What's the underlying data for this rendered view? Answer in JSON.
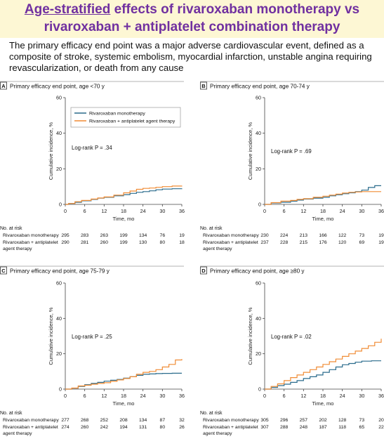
{
  "header": {
    "title_underlined": "Age-stratified",
    "title_rest": " effects of rivaroxaban monotherapy vs",
    "title_line2": "rivaroxaban + antiplatelet combination therapy",
    "description_lines": [
      "The primary efficacy end point was a major adverse cardiovascular event, defined as a",
      "composite of stroke, systemic embolism, myocardial infarction, unstable angina requiring",
      "revascularization, or death from any cause"
    ]
  },
  "colors": {
    "monotherapy": "#2a6b8c",
    "combination": "#f08c35",
    "title": "#7030a0",
    "title_band": "#fdf7d4"
  },
  "chart_data": [
    {
      "type": "line",
      "panel_letter": "A",
      "title": "Primary efficacy end point, age <70 y",
      "xlabel": "Time, mo",
      "ylabel": "Cumulative incidence, %",
      "xlim": [
        0,
        36
      ],
      "ylim": [
        0,
        60
      ],
      "xticks": [
        0,
        6,
        12,
        18,
        24,
        30,
        36
      ],
      "yticks": [
        0,
        20,
        40,
        60
      ],
      "legend_position": "top-left",
      "logrank": "Log-rank P = .34",
      "series": [
        {
          "name": "Rivaroxaban monotherapy",
          "color": "#2a6b8c",
          "points": [
            [
              0,
              0
            ],
            [
              1,
              0.5
            ],
            [
              3,
              1.2
            ],
            [
              5,
              2.0
            ],
            [
              8,
              2.8
            ],
            [
              10,
              3.5
            ],
            [
              12,
              4.0
            ],
            [
              15,
              4.8
            ],
            [
              18,
              5.5
            ],
            [
              20,
              6.2
            ],
            [
              22,
              6.8
            ],
            [
              24,
              7.2
            ],
            [
              26,
              7.6
            ],
            [
              28,
              8.2
            ],
            [
              30,
              8.6
            ],
            [
              33,
              8.8
            ],
            [
              36,
              9.0
            ]
          ]
        },
        {
          "name": "Rivaroxaban + antiplatelet agent therapy",
          "color": "#f08c35",
          "points": [
            [
              0,
              0
            ],
            [
              1,
              0.5
            ],
            [
              3,
              1.5
            ],
            [
              5,
              2.2
            ],
            [
              8,
              3.0
            ],
            [
              10,
              3.6
            ],
            [
              12,
              4.2
            ],
            [
              15,
              5.2
            ],
            [
              18,
              6.5
            ],
            [
              20,
              7.5
            ],
            [
              22,
              8.5
            ],
            [
              24,
              9.0
            ],
            [
              26,
              9.2
            ],
            [
              28,
              9.6
            ],
            [
              30,
              10.0
            ],
            [
              33,
              10.3
            ],
            [
              36,
              10.5
            ]
          ]
        }
      ],
      "risk_table": {
        "header": "No. at risk",
        "rows": [
          {
            "label": [
              "Rivaroxaban monotherapy"
            ],
            "values": [
              "295",
              "283",
              "263",
              "199",
              "134",
              "76",
              "19"
            ]
          },
          {
            "label": [
              "Rivaroxaban + antiplatelet",
              "agent therapy"
            ],
            "values": [
              "290",
              "281",
              "260",
              "199",
              "130",
              "80",
              "18"
            ]
          }
        ]
      }
    },
    {
      "type": "line",
      "panel_letter": "B",
      "title": "Primary efficacy end point, age 70-74 y",
      "xlabel": "Time, mo",
      "ylabel": "Cumulative incidence, %",
      "xlim": [
        0,
        36
      ],
      "ylim": [
        0,
        60
      ],
      "xticks": [
        0,
        6,
        12,
        18,
        24,
        30,
        36
      ],
      "yticks": [
        0,
        20,
        40,
        60
      ],
      "logrank": "Log-rank P = .69",
      "series": [
        {
          "name": "Rivaroxaban monotherapy",
          "color": "#2a6b8c",
          "points": [
            [
              0,
              0
            ],
            [
              2,
              0.8
            ],
            [
              5,
              1.2
            ],
            [
              8,
              1.8
            ],
            [
              10,
              2.4
            ],
            [
              12,
              3.0
            ],
            [
              15,
              3.5
            ],
            [
              18,
              4.0
            ],
            [
              20,
              4.8
            ],
            [
              22,
              5.4
            ],
            [
              24,
              6.0
            ],
            [
              26,
              6.5
            ],
            [
              28,
              7.2
            ],
            [
              30,
              8.0
            ],
            [
              32,
              9.5
            ],
            [
              34,
              10.5
            ],
            [
              36,
              10.5
            ]
          ]
        },
        {
          "name": "Rivaroxaban + antiplatelet agent therapy",
          "color": "#f08c35",
          "points": [
            [
              0,
              0
            ],
            [
              2,
              1.0
            ],
            [
              5,
              1.8
            ],
            [
              8,
              2.2
            ],
            [
              10,
              2.8
            ],
            [
              12,
              3.2
            ],
            [
              15,
              4.0
            ],
            [
              18,
              4.6
            ],
            [
              20,
              5.2
            ],
            [
              22,
              5.8
            ],
            [
              24,
              6.4
            ],
            [
              26,
              6.8
            ],
            [
              28,
              7.0
            ],
            [
              30,
              7.2
            ],
            [
              33,
              7.2
            ],
            [
              36,
              7.2
            ]
          ]
        }
      ],
      "risk_table": {
        "header": "No. at risk",
        "rows": [
          {
            "label": [
              "Rivaroxaban monotherapy"
            ],
            "values": [
              "230",
              "224",
              "213",
              "166",
              "122",
              "73",
              "19"
            ]
          },
          {
            "label": [
              "Rivaroxaban + antiplatelet",
              "agent therapy"
            ],
            "values": [
              "237",
              "228",
              "215",
              "176",
              "120",
              "69",
              "19"
            ]
          }
        ]
      }
    },
    {
      "type": "line",
      "panel_letter": "C",
      "title": "Primary efficacy end point, age 75-79 y",
      "xlabel": "Time, mo",
      "ylabel": "Cumulative incidence, %",
      "xlim": [
        0,
        36
      ],
      "ylim": [
        0,
        60
      ],
      "xticks": [
        0,
        6,
        12,
        18,
        24,
        30,
        36
      ],
      "yticks": [
        0,
        20,
        40,
        60
      ],
      "logrank": "Log-rank P = .25",
      "series": [
        {
          "name": "Rivaroxaban monotherapy",
          "color": "#2a6b8c",
          "points": [
            [
              0,
              0
            ],
            [
              2,
              0.5
            ],
            [
              4,
              1.5
            ],
            [
              6,
              2.5
            ],
            [
              8,
              3.2
            ],
            [
              10,
              3.8
            ],
            [
              12,
              4.5
            ],
            [
              14,
              5.0
            ],
            [
              16,
              5.5
            ],
            [
              18,
              6.2
            ],
            [
              20,
              7.0
            ],
            [
              22,
              7.8
            ],
            [
              24,
              8.4
            ],
            [
              26,
              8.6
            ],
            [
              28,
              8.8
            ],
            [
              30,
              8.9
            ],
            [
              33,
              9.0
            ],
            [
              36,
              9.0
            ]
          ]
        },
        {
          "name": "Rivaroxaban + antiplatelet agent therapy",
          "color": "#f08c35",
          "points": [
            [
              0,
              0
            ],
            [
              2,
              0.6
            ],
            [
              4,
              1.8
            ],
            [
              6,
              2.2
            ],
            [
              8,
              2.8
            ],
            [
              10,
              3.2
            ],
            [
              12,
              3.6
            ],
            [
              14,
              4.4
            ],
            [
              16,
              5.2
            ],
            [
              18,
              6.0
            ],
            [
              20,
              7.0
            ],
            [
              22,
              8.4
            ],
            [
              24,
              9.5
            ],
            [
              26,
              10.0
            ],
            [
              28,
              11.0
            ],
            [
              30,
              12.5
            ],
            [
              32,
              14.0
            ],
            [
              34,
              16.5
            ],
            [
              36,
              17.0
            ]
          ]
        }
      ],
      "risk_table": {
        "header": "No. at risk",
        "rows": [
          {
            "label": [
              "Rivaroxaban monotherapy"
            ],
            "values": [
              "277",
              "268",
              "252",
              "208",
              "134",
              "87",
              "32"
            ]
          },
          {
            "label": [
              "Rivaroxaban + antiplatelet",
              "agent therapy"
            ],
            "values": [
              "274",
              "260",
              "242",
              "194",
              "131",
              "80",
              "26"
            ]
          }
        ]
      }
    },
    {
      "type": "line",
      "panel_letter": "D",
      "title": "Primary efficacy end point, age ≥80 y",
      "xlabel": "Time, mo",
      "ylabel": "Cumulative incidence, %",
      "xlim": [
        0,
        36
      ],
      "ylim": [
        0,
        60
      ],
      "xticks": [
        0,
        6,
        12,
        18,
        24,
        30,
        36
      ],
      "yticks": [
        0,
        20,
        40,
        60
      ],
      "logrank": "Log-rank P = .02",
      "series": [
        {
          "name": "Rivaroxaban monotherapy",
          "color": "#2a6b8c",
          "points": [
            [
              0,
              0
            ],
            [
              2,
              1.0
            ],
            [
              4,
              2.0
            ],
            [
              6,
              2.8
            ],
            [
              8,
              3.8
            ],
            [
              10,
              4.8
            ],
            [
              12,
              6.0
            ],
            [
              14,
              7.0
            ],
            [
              16,
              8.0
            ],
            [
              18,
              9.5
            ],
            [
              20,
              11.0
            ],
            [
              22,
              12.5
            ],
            [
              24,
              13.8
            ],
            [
              26,
              14.5
            ],
            [
              28,
              15.2
            ],
            [
              30,
              15.8
            ],
            [
              33,
              16.0
            ],
            [
              36,
              16.0
            ]
          ]
        },
        {
          "name": "Rivaroxaban + antiplatelet agent therapy",
          "color": "#f08c35",
          "points": [
            [
              0,
              0
            ],
            [
              2,
              1.5
            ],
            [
              4,
              3.0
            ],
            [
              6,
              4.8
            ],
            [
              8,
              6.5
            ],
            [
              10,
              8.0
            ],
            [
              12,
              9.5
            ],
            [
              14,
              11.0
            ],
            [
              16,
              12.5
            ],
            [
              18,
              14.0
            ],
            [
              20,
              15.5
            ],
            [
              22,
              17.0
            ],
            [
              24,
              18.5
            ],
            [
              26,
              20.0
            ],
            [
              28,
              21.5
            ],
            [
              30,
              23.0
            ],
            [
              32,
              24.5
            ],
            [
              34,
              26.5
            ],
            [
              36,
              28.5
            ]
          ]
        }
      ],
      "risk_table": {
        "header": "No. at risk",
        "rows": [
          {
            "label": [
              "Rivaroxaban monotherapy"
            ],
            "values": [
              "305",
              "296",
              "257",
              "202",
              "128",
              "73",
              "20"
            ]
          },
          {
            "label": [
              "Rivaroxaban + antiplatelet",
              "agent therapy"
            ],
            "values": [
              "307",
              "288",
              "248",
              "187",
              "118",
              "65",
              "22"
            ]
          }
        ]
      }
    }
  ]
}
